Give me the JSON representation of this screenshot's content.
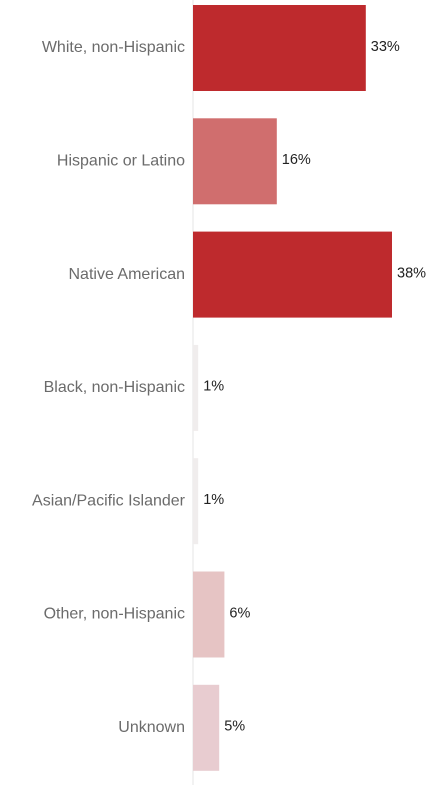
{
  "chart_data": {
    "type": "bar",
    "orientation": "horizontal",
    "categories": [
      "White, non-Hispanic",
      "Hispanic or Latino",
      "Native American",
      "Black, non-Hispanic",
      "Asian/Pacific Islander",
      "Other, non-Hispanic",
      "Unknown"
    ],
    "values": [
      33,
      16,
      38,
      1,
      1,
      6,
      5
    ],
    "value_labels": [
      "33%",
      "16%",
      "38%",
      "1%",
      "1%",
      "6%",
      "5%"
    ],
    "bar_colors": [
      "#be2a2d",
      "#d06e6e",
      "#be2a2d",
      "#f0eded",
      "#f0eded",
      "#e6c4c4",
      "#e8ccd0"
    ],
    "xlim": [
      0,
      38
    ],
    "grid": false,
    "legend": "none"
  }
}
